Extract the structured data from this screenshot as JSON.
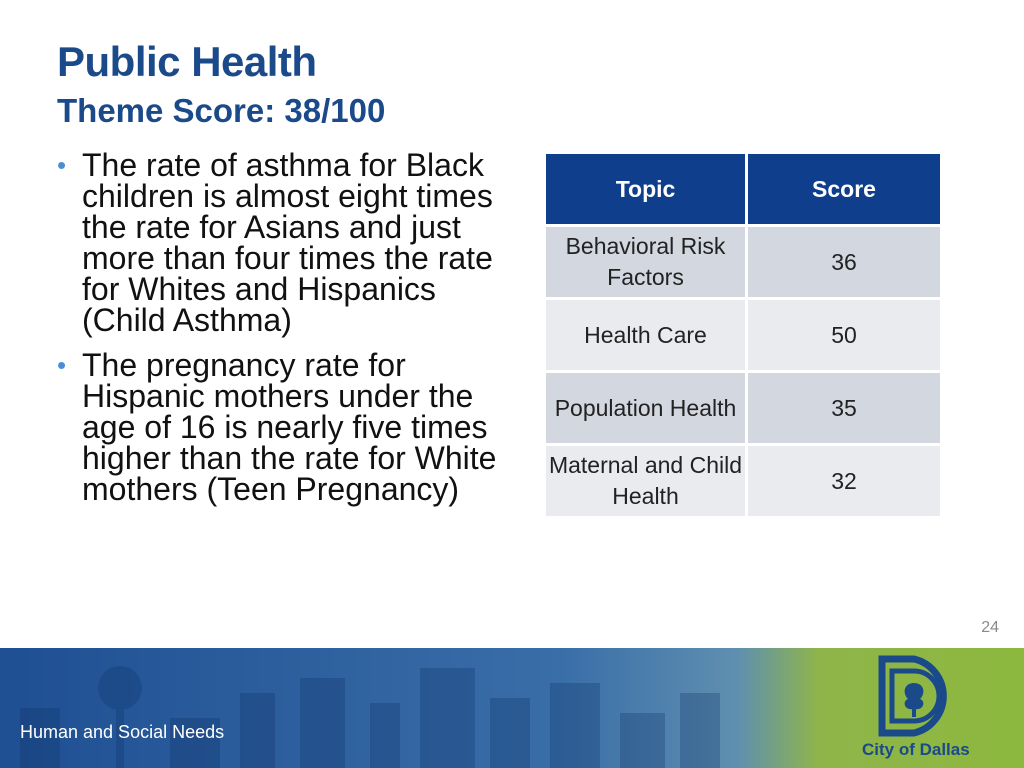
{
  "slide": {
    "title": "Public Health",
    "subtitle": "Theme Score: 38/100",
    "bullets": [
      "The rate of asthma for Black children is almost eight times the rate for Asians and just more than four times the rate for Whites and Hispanics (Child Asthma)",
      "The pregnancy rate for Hispanic mothers under the age of 16 is nearly five times higher than the rate for White mothers (Teen Pregnancy)"
    ],
    "bullet_symbol": "•",
    "page_number": "24"
  },
  "table": {
    "headers": [
      "Topic",
      "Score"
    ],
    "rows": [
      {
        "topic": "Behavioral Risk Factors",
        "score": "36"
      },
      {
        "topic": "Health Care",
        "score": "50"
      },
      {
        "topic": "Population Health",
        "score": "35"
      },
      {
        "topic": "Maternal and Child Health",
        "score": "32"
      }
    ]
  },
  "footer": {
    "label": "Human and Social Needs",
    "logo_text": "City of Dallas",
    "logo_icon": "city-of-dallas-logo-icon"
  },
  "colors": {
    "title": "#1b4a8a",
    "table_header": "#0f3f8c",
    "row_dark": "#d3d7df",
    "row_light": "#e9ebef",
    "footer_blue": "#1f4f93",
    "footer_green": "#8db83e"
  }
}
